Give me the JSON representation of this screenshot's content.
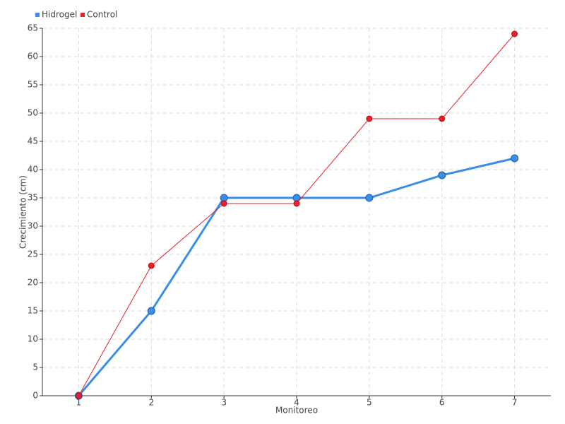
{
  "chart_data": {
    "type": "line",
    "x_label": "Monitoreo",
    "y_label": "Crecimiento (cm)",
    "categories": [
      "1",
      "2",
      "3",
      "4",
      "5",
      "6",
      "7"
    ],
    "series": [
      {
        "name": "Hidrogel",
        "color": "#3a8ee6",
        "values": [
          0,
          15,
          35,
          35,
          35,
          39,
          42
        ]
      },
      {
        "name": "Control",
        "color": "#e8202a",
        "values": [
          0,
          23,
          34,
          34,
          49,
          49,
          64
        ]
      }
    ],
    "ylim": [
      0,
      65
    ],
    "yticks": [
      0,
      5,
      10,
      15,
      20,
      25,
      30,
      35,
      40,
      45,
      50,
      55,
      60,
      65
    ],
    "grid": true,
    "legend": "top-left"
  }
}
